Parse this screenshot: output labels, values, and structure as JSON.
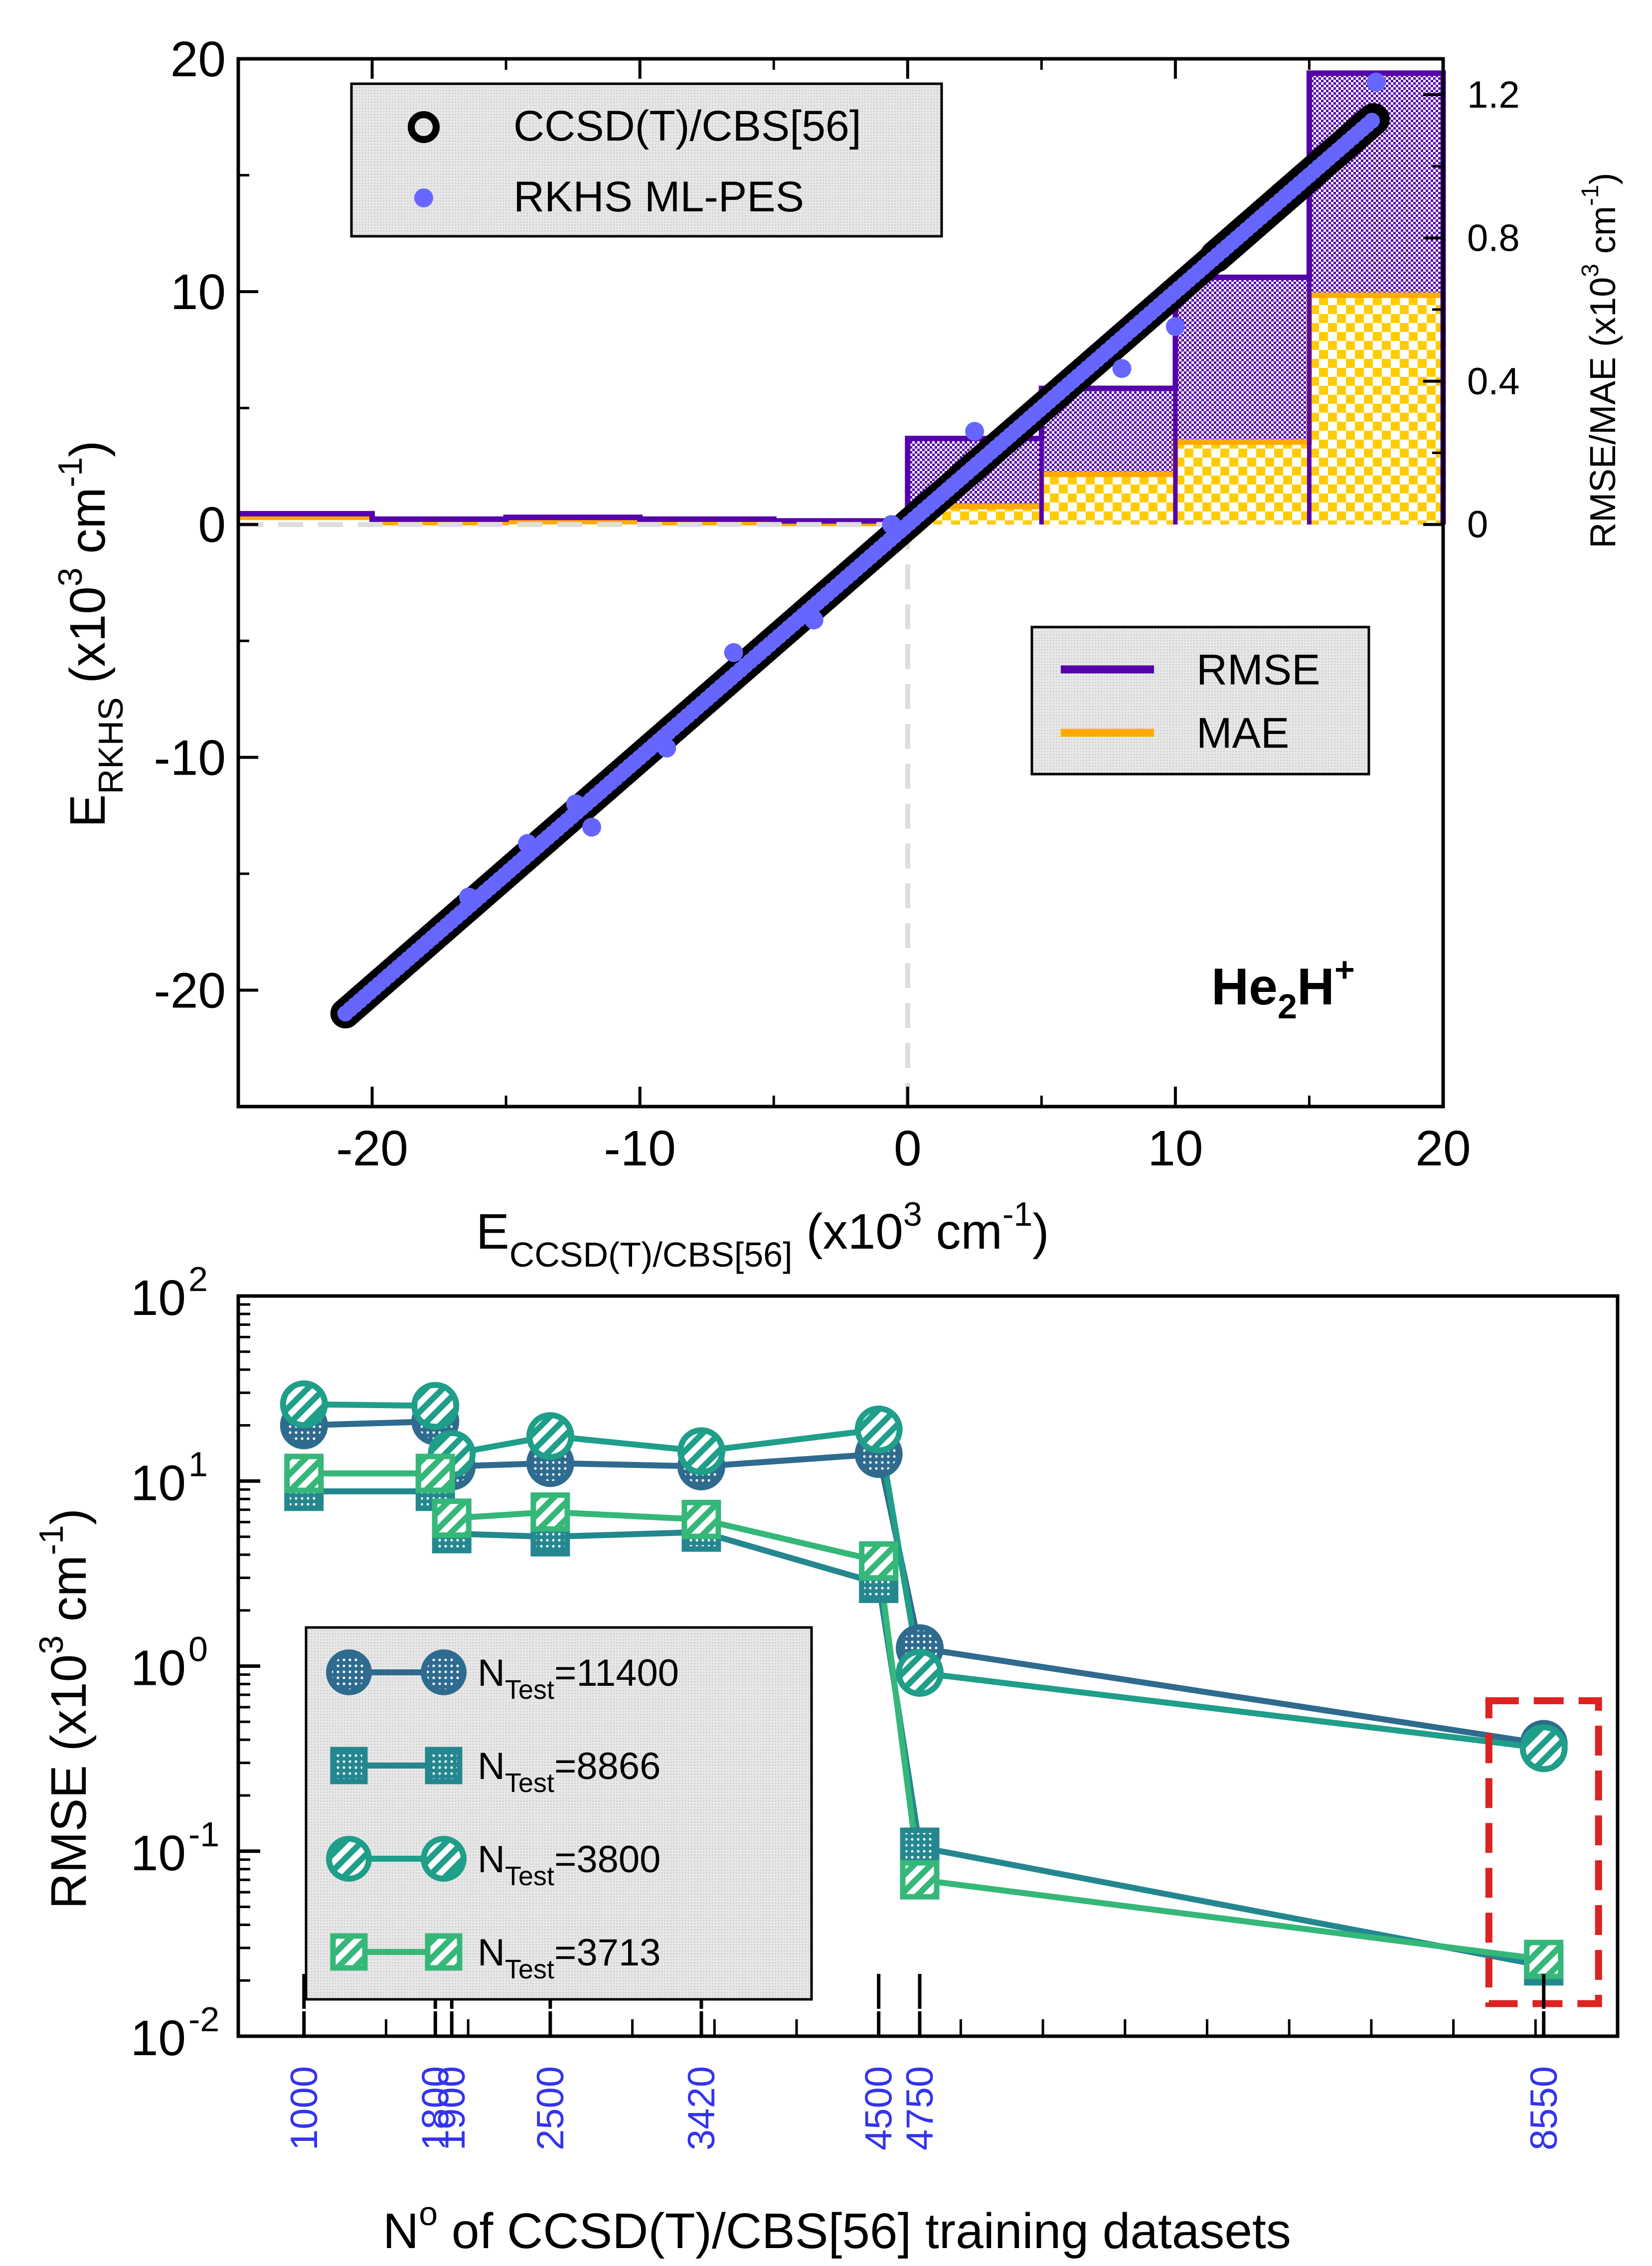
{
  "chart_data": [
    {
      "type": "scatter",
      "panel": "top",
      "title": "",
      "annotation": {
        "main": "He",
        "sub": "2",
        "mid": "H",
        "sup": "+"
      },
      "xlabel": {
        "main": "E",
        "sub": "CCSD(T)/CBS[56]",
        "rest": " (x10",
        "sup": "3",
        "unit": " cm",
        "sup2": "-1",
        "close": ")"
      },
      "ylabel": {
        "main": "E",
        "sub": "RKHS",
        "rest": " (x10",
        "sup": "3",
        "unit": " cm",
        "sup2": "-1",
        "close": ")"
      },
      "y2label": {
        "main": "RMSE/MAE (x10",
        "sup": "3",
        "unit": " cm",
        "sup2": "-1",
        "close": ")"
      },
      "xlim": [
        -25,
        20
      ],
      "ylim": [
        -25,
        20
      ],
      "y2lim": [
        0,
        1.3
      ],
      "xticks": [
        "-20",
        "-10",
        "0",
        "10",
        "20"
      ],
      "xtick_values": [
        -20,
        -10,
        0,
        10,
        20
      ],
      "yticks": [
        "-20",
        "-10",
        "0",
        "10",
        "20"
      ],
      "ytick_values": [
        -20,
        -10,
        0,
        10,
        20
      ],
      "y2ticks": [
        "0",
        "0.4",
        "0.8",
        "1.2"
      ],
      "y2tick_values": [
        0,
        0.4,
        0.8,
        1.2
      ],
      "legend_points": [
        "CCSD(T)/CBS[56]",
        "RKHS ML-PES"
      ],
      "legend_errors": [
        "RMSE",
        "MAE"
      ],
      "reference_range": [
        -21,
        17.5
      ],
      "ml_points": [
        {
          "x": 2.5,
          "y": 4.0
        },
        {
          "x": 8.0,
          "y": 6.7
        },
        {
          "x": 10.0,
          "y": 8.5
        },
        {
          "x": 17.5,
          "y": 19.0
        },
        {
          "x": -6.5,
          "y": -5.5
        },
        {
          "x": -9.0,
          "y": -9.6
        },
        {
          "x": -11.8,
          "y": -13.0
        },
        {
          "x": -12.4,
          "y": -12.0
        },
        {
          "x": -14.2,
          "y": -13.7
        },
        {
          "x": -16.4,
          "y": -16.0
        },
        {
          "x": -3.5,
          "y": -4.1
        },
        {
          "x": -0.6,
          "y": 0.0
        }
      ],
      "rmse_hist": [
        {
          "x0": -25,
          "x1": -20,
          "value": 0.03
        },
        {
          "x0": -20,
          "x1": -15,
          "value": 0.015
        },
        {
          "x0": -15,
          "x1": -10,
          "value": 0.02
        },
        {
          "x0": -10,
          "x1": -5,
          "value": 0.015
        },
        {
          "x0": -5,
          "x1": 0,
          "value": 0.01
        },
        {
          "x0": 0,
          "x1": 5,
          "value": 0.24
        },
        {
          "x0": 5,
          "x1": 10,
          "value": 0.38
        },
        {
          "x0": 10,
          "x1": 15,
          "value": 0.69
        },
        {
          "x0": 15,
          "x1": 20,
          "value": 1.26
        }
      ],
      "mae_hist": [
        {
          "x0": -25,
          "x1": -20,
          "value": 0.02
        },
        {
          "x0": -20,
          "x1": -15,
          "value": 0.005
        },
        {
          "x0": -15,
          "x1": -10,
          "value": 0.008
        },
        {
          "x0": -10,
          "x1": -5,
          "value": 0.005
        },
        {
          "x0": -5,
          "x1": 0,
          "value": 0.003
        },
        {
          "x0": 0,
          "x1": 5,
          "value": 0.05
        },
        {
          "x0": 5,
          "x1": 10,
          "value": 0.14
        },
        {
          "x0": 10,
          "x1": 15,
          "value": 0.23
        },
        {
          "x0": 15,
          "x1": 20,
          "value": 0.64
        }
      ],
      "colors": {
        "reference": "#000000",
        "ml": "#6666ff",
        "rmse": "#5500aa",
        "mae": "#ffaa00",
        "mae_fill": "#ffcc00",
        "dash": "#dddddd"
      }
    },
    {
      "type": "line",
      "panel": "bottom",
      "yscale": "log",
      "ylim": [
        0.01,
        100
      ],
      "xlim": [
        600,
        9000
      ],
      "xlabel": {
        "pre": "N",
        "sup": "o",
        "rest": " of CCSD(T)/CBS[56] training datasets"
      },
      "ylabel": {
        "main": "RMSE (x10",
        "sup": "3",
        "unit": " cm",
        "sup2": "-1",
        "close": ")"
      },
      "yticks": [
        {
          "base": "10",
          "exp": "-2",
          "value": 0.01
        },
        {
          "base": "10",
          "exp": "-1",
          "value": 0.1
        },
        {
          "base": "10",
          "exp": "0",
          "value": 1
        },
        {
          "base": "10",
          "exp": "1",
          "value": 10
        },
        {
          "base": "10",
          "exp": "2",
          "value": 100
        }
      ],
      "xticks": [
        "1000",
        "1800",
        "1900",
        "2500",
        "3420",
        "4500",
        "4750",
        "8550"
      ],
      "xtick_values": [
        1000,
        1800,
        1900,
        2500,
        3420,
        4500,
        4750,
        8550
      ],
      "series": [
        {
          "name": "N",
          "sub": "Test",
          "rest": "=11400",
          "marker": "circle",
          "pattern": "dots",
          "color": "#2e6b8e",
          "x": [
            1000,
            1800,
            1900,
            2500,
            3420,
            4500,
            4750,
            8550
          ],
          "values": [
            20,
            21,
            12,
            12.5,
            12,
            14,
            1.25,
            0.38
          ]
        },
        {
          "name": "N",
          "sub": "Test",
          "rest": "=8866",
          "marker": "square",
          "pattern": "dots",
          "color": "#24878f",
          "x": [
            1000,
            1800,
            1900,
            2500,
            3420,
            4500,
            4750,
            8550
          ],
          "values": [
            8.8,
            8.8,
            5.2,
            5.0,
            5.3,
            2.8,
            0.105,
            0.024
          ]
        },
        {
          "name": "N",
          "sub": "Test",
          "rest": "=3800",
          "marker": "circle",
          "pattern": "stripes",
          "color": "#1f9e89",
          "x": [
            1000,
            1800,
            1900,
            2500,
            3420,
            4500,
            4750,
            8550
          ],
          "values": [
            26,
            25.5,
            14,
            17.5,
            14.5,
            19,
            0.92,
            0.36
          ]
        },
        {
          "name": "N",
          "sub": "Test",
          "rest": "=3713",
          "marker": "square",
          "pattern": "stripes",
          "color": "#35b779",
          "x": [
            1000,
            1800,
            1900,
            2500,
            3420,
            4500,
            4750,
            8550
          ],
          "values": [
            11,
            11,
            6.3,
            6.8,
            6.2,
            3.7,
            0.07,
            0.026
          ]
        }
      ],
      "highlight": {
        "x": 8550,
        "color": "#dd2222"
      },
      "colors": {
        "ticklabel": "#3333ee"
      }
    }
  ]
}
